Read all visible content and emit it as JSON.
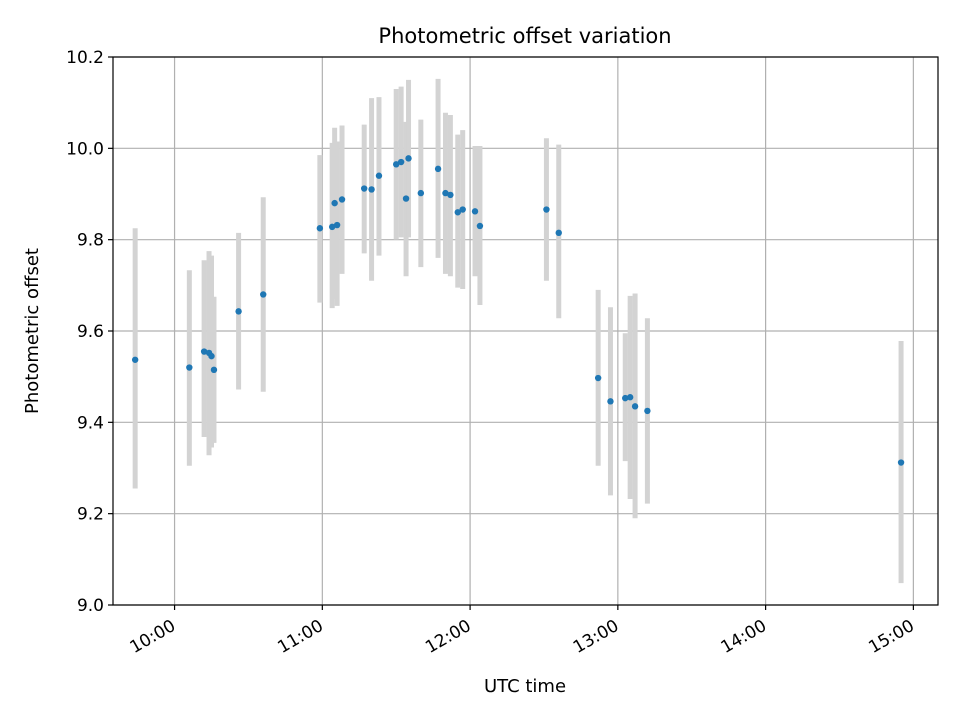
{
  "chart_data": {
    "type": "scatter",
    "title": "Photometric offset variation",
    "xlabel": "UTC time",
    "ylabel": "Photometric offset",
    "x_axis": "time",
    "xlim": [
      "09:35",
      "15:10"
    ],
    "ylim": [
      9.0,
      10.2
    ],
    "x_ticks": [
      "10:00",
      "11:00",
      "12:00",
      "13:00",
      "14:00",
      "15:00"
    ],
    "y_ticks": [
      "9.0",
      "9.2",
      "9.4",
      "9.6",
      "9.8",
      "10.0",
      "10.2"
    ],
    "grid": true,
    "colors": {
      "point": "#1f77b4",
      "error_bar": "#d3d3d3",
      "grid": "#b0b0b0"
    },
    "series": [
      {
        "marker": "point",
        "error_bars": "vertical",
        "points": [
          {
            "x": "09:44",
            "y": 9.537,
            "ylow": 9.255,
            "yhigh": 9.825
          },
          {
            "x": "10:06",
            "y": 9.52,
            "ylow": 9.305,
            "yhigh": 9.733
          },
          {
            "x": "10:12",
            "y": 9.555,
            "ylow": 9.368,
            "yhigh": 9.755
          },
          {
            "x": "10:14",
            "y": 9.552,
            "ylow": 9.328,
            "yhigh": 9.775
          },
          {
            "x": "10:15",
            "y": 9.545,
            "ylow": 9.345,
            "yhigh": 9.765
          },
          {
            "x": "10:16",
            "y": 9.515,
            "ylow": 9.355,
            "yhigh": 9.675
          },
          {
            "x": "10:26",
            "y": 9.643,
            "ylow": 9.472,
            "yhigh": 9.815
          },
          {
            "x": "10:36",
            "y": 9.68,
            "ylow": 9.467,
            "yhigh": 9.893
          },
          {
            "x": "10:59",
            "y": 9.825,
            "ylow": 9.662,
            "yhigh": 9.985
          },
          {
            "x": "11:04",
            "y": 9.828,
            "ylow": 9.65,
            "yhigh": 10.012
          },
          {
            "x": "11:05",
            "y": 9.88,
            "ylow": 9.67,
            "yhigh": 10.045
          },
          {
            "x": "11:06",
            "y": 9.832,
            "ylow": 9.655,
            "yhigh": 10.015
          },
          {
            "x": "11:08",
            "y": 9.888,
            "ylow": 9.725,
            "yhigh": 10.05
          },
          {
            "x": "11:17",
            "y": 9.912,
            "ylow": 9.77,
            "yhigh": 10.052
          },
          {
            "x": "11:20",
            "y": 9.91,
            "ylow": 9.71,
            "yhigh": 10.11
          },
          {
            "x": "11:23",
            "y": 9.94,
            "ylow": 9.765,
            "yhigh": 10.112
          },
          {
            "x": "11:30",
            "y": 9.965,
            "ylow": 9.8,
            "yhigh": 10.13
          },
          {
            "x": "11:32",
            "y": 9.97,
            "ylow": 9.805,
            "yhigh": 10.135
          },
          {
            "x": "11:34",
            "y": 9.89,
            "ylow": 9.72,
            "yhigh": 10.058
          },
          {
            "x": "11:35",
            "y": 9.978,
            "ylow": 9.805,
            "yhigh": 10.15
          },
          {
            "x": "11:40",
            "y": 9.902,
            "ylow": 9.74,
            "yhigh": 10.063
          },
          {
            "x": "11:47",
            "y": 9.955,
            "ylow": 9.76,
            "yhigh": 10.152
          },
          {
            "x": "11:50",
            "y": 9.902,
            "ylow": 9.725,
            "yhigh": 10.078
          },
          {
            "x": "11:52",
            "y": 9.898,
            "ylow": 9.72,
            "yhigh": 10.073
          },
          {
            "x": "11:55",
            "y": 9.86,
            "ylow": 9.695,
            "yhigh": 10.03
          },
          {
            "x": "11:57",
            "y": 9.866,
            "ylow": 9.692,
            "yhigh": 10.04
          },
          {
            "x": "12:02",
            "y": 9.862,
            "ylow": 9.72,
            "yhigh": 10.005
          },
          {
            "x": "12:04",
            "y": 9.83,
            "ylow": 9.657,
            "yhigh": 10.005
          },
          {
            "x": "12:31",
            "y": 9.866,
            "ylow": 9.71,
            "yhigh": 10.022
          },
          {
            "x": "12:36",
            "y": 9.815,
            "ylow": 9.628,
            "yhigh": 10.008
          },
          {
            "x": "12:52",
            "y": 9.497,
            "ylow": 9.305,
            "yhigh": 9.69
          },
          {
            "x": "12:57",
            "y": 9.446,
            "ylow": 9.24,
            "yhigh": 9.652
          },
          {
            "x": "13:03",
            "y": 9.453,
            "ylow": 9.315,
            "yhigh": 9.595
          },
          {
            "x": "13:05",
            "y": 9.455,
            "ylow": 9.232,
            "yhigh": 9.677
          },
          {
            "x": "13:07",
            "y": 9.435,
            "ylow": 9.19,
            "yhigh": 9.682
          },
          {
            "x": "13:12",
            "y": 9.425,
            "ylow": 9.222,
            "yhigh": 9.628
          },
          {
            "x": "14:55",
            "y": 9.312,
            "ylow": 9.048,
            "yhigh": 9.578
          }
        ]
      }
    ]
  }
}
